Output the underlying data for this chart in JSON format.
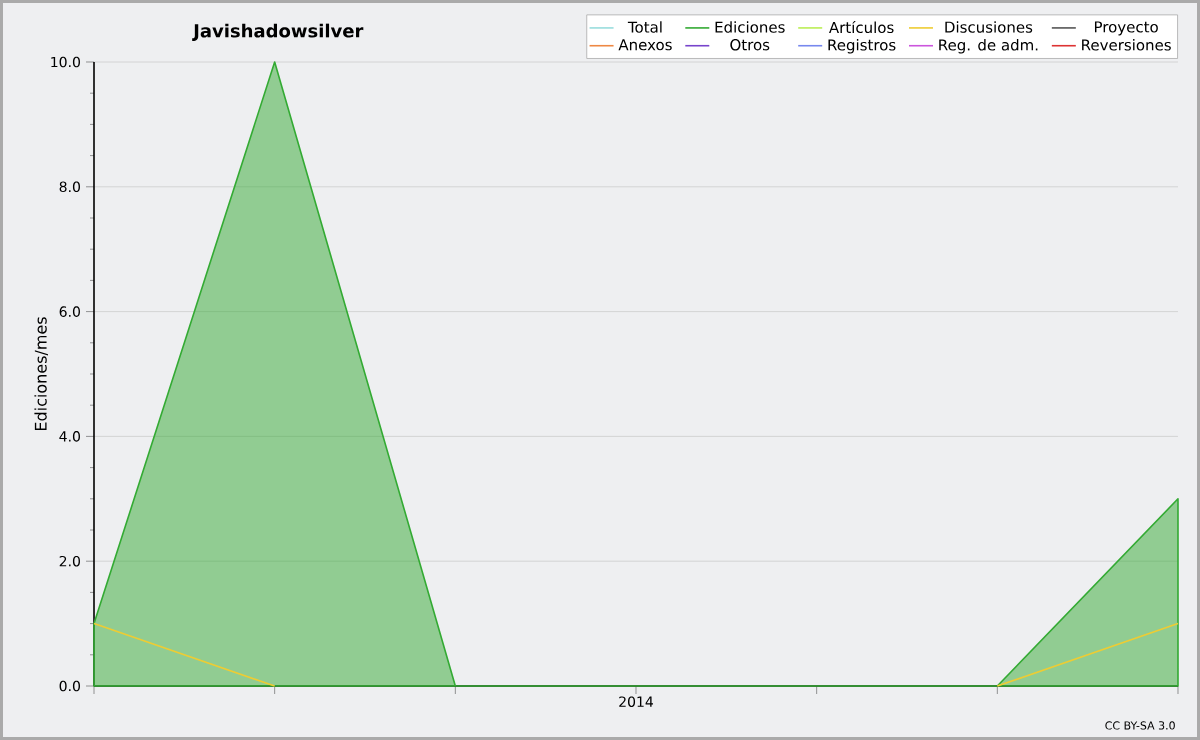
{
  "chart_data": {
    "type": "line",
    "title": "Javishadowsilver",
    "ylabel": "Ediciones/mes",
    "categories": [
      null,
      null,
      null,
      "2014",
      null,
      null,
      null
    ],
    "ylim": [
      0,
      10
    ],
    "yticks": [
      {
        "value": 0,
        "label": "0.0"
      },
      {
        "value": 2,
        "label": "2.0"
      },
      {
        "value": 4,
        "label": "4.0"
      },
      {
        "value": 6,
        "label": "6.0"
      },
      {
        "value": 8,
        "label": "8.0"
      },
      {
        "value": 10,
        "label": "10.0"
      }
    ],
    "grid": "y",
    "legend": "top right",
    "annotations": [
      "CC BY-SA 3.0"
    ],
    "series": [
      {
        "name": "Total",
        "color": "#99dddd",
        "values": [
          null,
          null,
          null,
          null,
          null,
          null,
          null
        ]
      },
      {
        "name": "Ediciones",
        "color": "#33aa33",
        "type": "area",
        "values": [
          1,
          10,
          0,
          0,
          0,
          0,
          3
        ]
      },
      {
        "name": "Artículos",
        "color": "#bbee55",
        "values": [
          null,
          null,
          null,
          null,
          null,
          null,
          null
        ]
      },
      {
        "name": "Discusiones",
        "color": "#eecc33",
        "values": [
          1,
          0,
          null,
          null,
          null,
          0,
          1
        ]
      },
      {
        "name": "Proyecto",
        "color": "#555555",
        "values": [
          null,
          null,
          null,
          null,
          null,
          null,
          null
        ]
      },
      {
        "name": "Anexos",
        "color": "#ee8844",
        "values": [
          null,
          null,
          null,
          null,
          null,
          null,
          null
        ]
      },
      {
        "name": "Otros",
        "color": "#7744cc",
        "values": [
          null,
          null,
          null,
          null,
          null,
          null,
          null
        ]
      },
      {
        "name": "Registros",
        "color": "#7788ee",
        "values": [
          null,
          null,
          null,
          null,
          null,
          null,
          null
        ]
      },
      {
        "name": "Reg. de adm.",
        "color": "#cc55dd",
        "values": [
          null,
          null,
          null,
          null,
          null,
          null,
          null
        ]
      },
      {
        "name": "Reversiones",
        "color": "#dd3333",
        "values": [
          null,
          null,
          null,
          null,
          null,
          null,
          null
        ]
      }
    ]
  }
}
